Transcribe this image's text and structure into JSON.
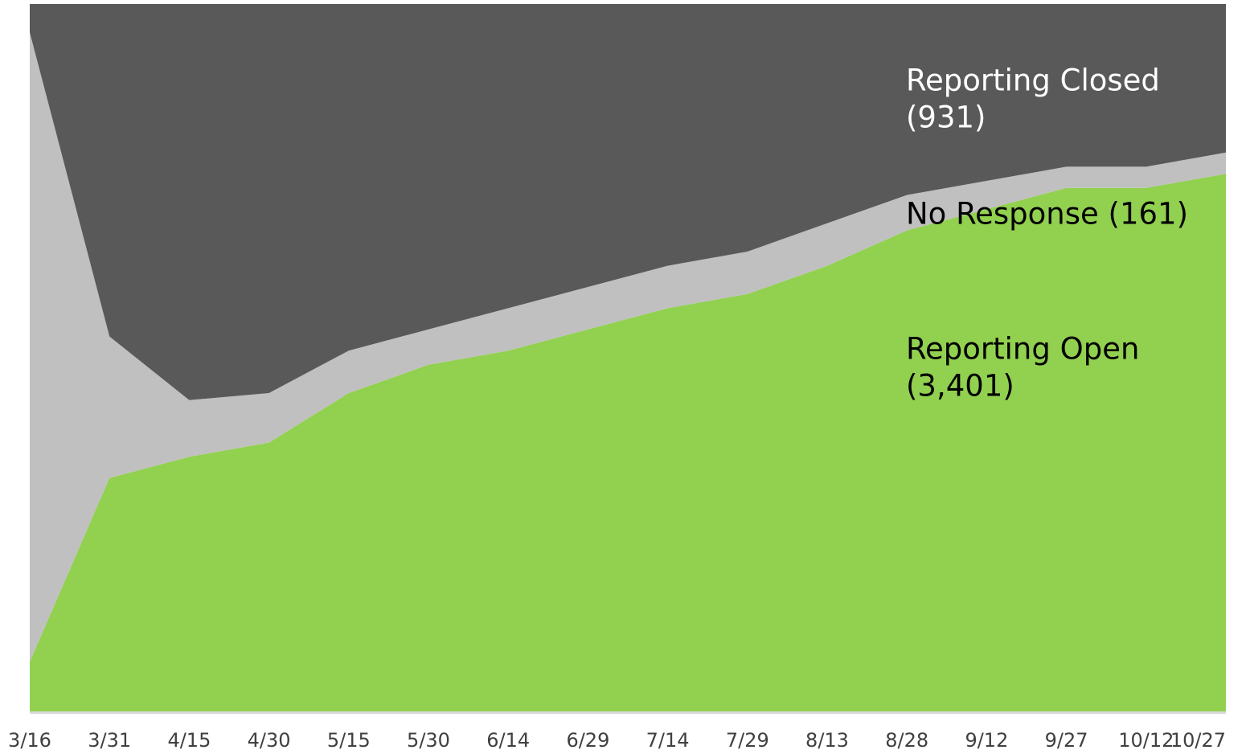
{
  "chart_data": {
    "type": "area",
    "stacked": true,
    "categories": [
      "3/16",
      "3/31",
      "4/15",
      "4/30",
      "5/15",
      "5/30",
      "6/14",
      "6/29",
      "7/14",
      "7/29",
      "8/13",
      "8/28",
      "9/12",
      "9/27",
      "10/12",
      "10/27"
    ],
    "series": [
      {
        "name": "Reporting Open",
        "color": "#92d050",
        "values": [
          7,
          33,
          36,
          38,
          45,
          49,
          51,
          54,
          57,
          59,
          63,
          68,
          71,
          74,
          74,
          76
        ]
      },
      {
        "name": "No Response",
        "color": "#c0c0c0",
        "values": [
          89,
          20,
          8,
          7,
          6,
          5,
          6,
          6,
          6,
          6,
          6,
          5,
          4,
          3,
          3,
          3
        ]
      },
      {
        "name": "Reporting Closed",
        "color": "#595959",
        "values": [
          4,
          47,
          56,
          55,
          49,
          46,
          43,
          40,
          37,
          35,
          31,
          27,
          25,
          23,
          23,
          21
        ]
      }
    ],
    "ylim": [
      0,
      100
    ],
    "annotations": [
      {
        "lines": [
          "Reporting Closed",
          "(931)"
        ],
        "color": "#ffffff"
      },
      {
        "lines": [
          "No Response (161)"
        ],
        "color": "#000000"
      },
      {
        "lines": [
          "Reporting Open",
          "(3,401)"
        ],
        "color": "#000000"
      }
    ]
  }
}
